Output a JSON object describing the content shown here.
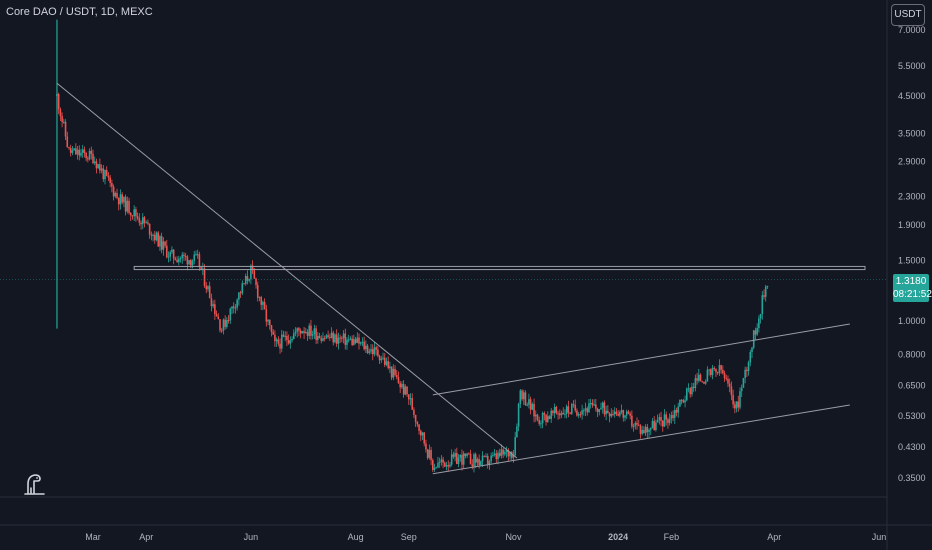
{
  "header": {
    "title": "Core DAO / USDT, 1D, MEXC",
    "currency": "USDT"
  },
  "price_tag": {
    "price": "1.3180",
    "countdown": "08:21:52",
    "color": "#26a69a"
  },
  "colors": {
    "background": "#131722",
    "up": "#26a69a",
    "down": "#ef5350",
    "drawing": "#9b9da6"
  },
  "chart_data": {
    "type": "candlestick",
    "pair": "Core DAO / USDT",
    "interval": "1D",
    "exchange": "MEXC",
    "y_scale": "log",
    "y_ticks": [
      "7.0000",
      "5.5000",
      "4.5000",
      "3.5000",
      "2.9000",
      "2.3000",
      "1.9000",
      "1.5000",
      "1.0000",
      "0.8000",
      "0.6500",
      "0.5300",
      "0.4300",
      "0.3500"
    ],
    "x_ticks": [
      "Mar",
      "Apr",
      "Jun",
      "Aug",
      "Sep",
      "Nov",
      "2024",
      "Feb",
      "Apr",
      "Jun"
    ],
    "last_price": 1.318,
    "approx_close_path": [
      {
        "date": "2023-02-08",
        "price": 4.5
      },
      {
        "date": "2023-02-15",
        "price": 3.1
      },
      {
        "date": "2023-03-01",
        "price": 3.0
      },
      {
        "date": "2023-03-15",
        "price": 2.3
      },
      {
        "date": "2023-04-01",
        "price": 1.9
      },
      {
        "date": "2023-04-15",
        "price": 1.55
      },
      {
        "date": "2023-05-01",
        "price": 1.5
      },
      {
        "date": "2023-05-15",
        "price": 0.95
      },
      {
        "date": "2023-06-01",
        "price": 1.4
      },
      {
        "date": "2023-06-15",
        "price": 0.85
      },
      {
        "date": "2023-07-01",
        "price": 0.95
      },
      {
        "date": "2023-07-15",
        "price": 0.9
      },
      {
        "date": "2023-08-01",
        "price": 0.87
      },
      {
        "date": "2023-08-15",
        "price": 0.8
      },
      {
        "date": "2023-09-01",
        "price": 0.6
      },
      {
        "date": "2023-09-15",
        "price": 0.38
      },
      {
        "date": "2023-10-01",
        "price": 0.4
      },
      {
        "date": "2023-10-15",
        "price": 0.39
      },
      {
        "date": "2023-11-01",
        "price": 0.42
      },
      {
        "date": "2023-11-05",
        "price": 0.63
      },
      {
        "date": "2023-11-15",
        "price": 0.52
      },
      {
        "date": "2023-12-01",
        "price": 0.55
      },
      {
        "date": "2023-12-15",
        "price": 0.56
      },
      {
        "date": "2024-01-01",
        "price": 0.55
      },
      {
        "date": "2024-01-15",
        "price": 0.48
      },
      {
        "date": "2024-02-01",
        "price": 0.53
      },
      {
        "date": "2024-02-15",
        "price": 0.67
      },
      {
        "date": "2024-03-01",
        "price": 0.72
      },
      {
        "date": "2024-03-10",
        "price": 0.56
      },
      {
        "date": "2024-03-20",
        "price": 0.9
      },
      {
        "date": "2024-03-28",
        "price": 1.318
      }
    ],
    "drawings": [
      {
        "type": "trendline",
        "from": {
          "date": "2023-02-08",
          "price": 4.9
        },
        "to": {
          "date": "2023-11-03",
          "price": 0.4
        }
      },
      {
        "type": "horizontal-zone",
        "price_top": 1.44,
        "price_bottom": 1.41,
        "from_date": "2023-03-25"
      },
      {
        "type": "channel-upper",
        "from": {
          "date": "2023-09-15",
          "price": 0.61
        },
        "to": {
          "date": "2024-05-15",
          "price": 0.98
        }
      },
      {
        "type": "channel-lower",
        "from": {
          "date": "2023-09-15",
          "price": 0.36
        },
        "to": {
          "date": "2024-05-15",
          "price": 0.57
        }
      }
    ]
  }
}
